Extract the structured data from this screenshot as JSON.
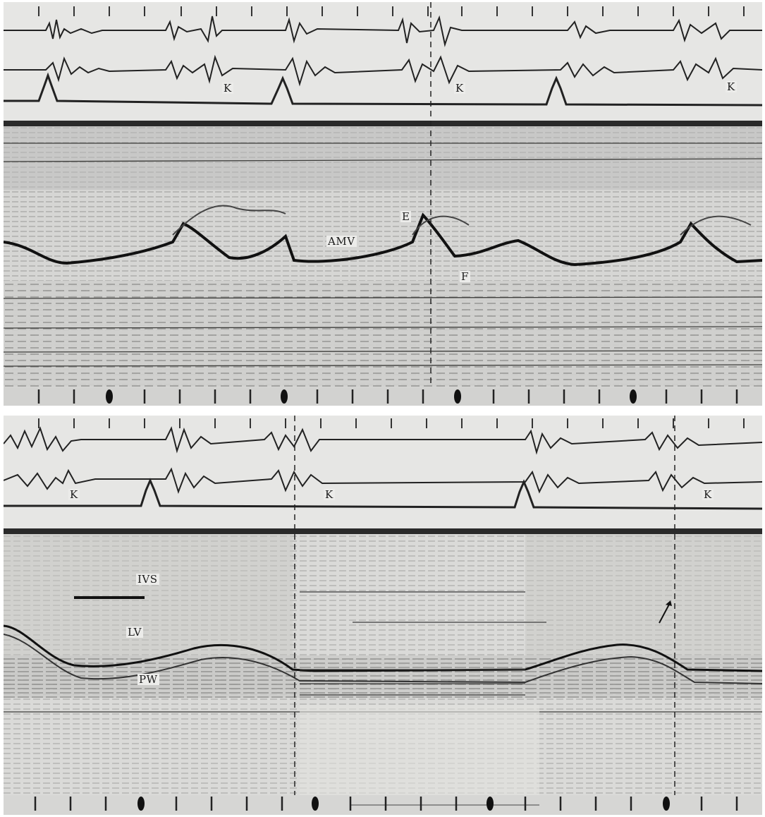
{
  "top_panel": {
    "labels": {
      "k1": "K",
      "k2": "K",
      "k3": "K",
      "amv": "AMV",
      "e": "E",
      "f": "F"
    }
  },
  "bottom_panel": {
    "labels": {
      "k1": "K",
      "k2": "K",
      "k3": "K",
      "ivs": "IVS",
      "lv": "LV",
      "pw": "PW"
    },
    "arrow_icon": "arrow-up-right"
  },
  "colors": {
    "background": "#d8d8d6",
    "trace": "#1e1e1e",
    "header_strip": "#e4e4e2"
  }
}
